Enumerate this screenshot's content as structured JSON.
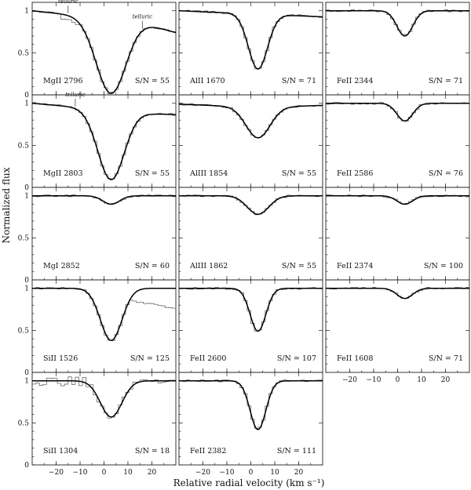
{
  "chart_data": {
    "type": "line",
    "xlabel": "Relative radial velocity (km s⁻¹)",
    "ylabel": "Normalized flux",
    "xlim": [
      -30,
      30
    ],
    "ylim": [
      0,
      1.1
    ],
    "xticks": [
      -20,
      -10,
      0,
      10,
      20
    ],
    "xtick_labels": [
      "−20",
      "−10",
      "0",
      "10",
      "20"
    ],
    "yticks": [
      0,
      0.5,
      1
    ],
    "ytick_labels": [
      "0",
      "0.5",
      "1"
    ],
    "line_center_velocity": 3,
    "panels": [
      {
        "ion": "MgII 2796",
        "snr": "S/N = 55",
        "depth": 0.98,
        "width": 6.2,
        "min_flux": 0.02,
        "telluric": [
          {
            "x": -15,
            "label": "telluric"
          },
          {
            "x": 16,
            "label": "telluric"
          }
        ]
      },
      {
        "ion": "AlII 1670",
        "snr": "S/N = 71",
        "depth": 0.68,
        "width": 4.0,
        "min_flux": 0.32
      },
      {
        "ion": "FeII 2344",
        "snr": "S/N = 71",
        "depth": 0.3,
        "width": 3.3,
        "min_flux": 0.7
      },
      {
        "ion": "MgII 2803",
        "snr": "S/N = 55",
        "depth": 0.9,
        "width": 5.5,
        "min_flux": 0.1,
        "telluric": [
          {
            "x": -12,
            "label": "telluric"
          }
        ]
      },
      {
        "ion": "AlIII 1854",
        "snr": "S/N = 55",
        "depth": 0.38,
        "width": 5.0,
        "min_flux": 0.62
      },
      {
        "ion": "FeII 2586",
        "snr": "S/N = 76",
        "depth": 0.21,
        "width": 3.3,
        "min_flux": 0.79
      },
      {
        "ion": "MgI 2852",
        "snr": "S/N = 60",
        "depth": 0.1,
        "width": 3.5,
        "min_flux": 0.9
      },
      {
        "ion": "AlIII 1862",
        "snr": "S/N = 55",
        "depth": 0.22,
        "width": 4.5,
        "min_flux": 0.78
      },
      {
        "ion": "FeII 2374",
        "snr": "S/N = 100",
        "depth": 0.1,
        "width": 3.3,
        "min_flux": 0.9
      },
      {
        "ion": "SiII 1526",
        "snr": "S/N = 125",
        "depth": 0.62,
        "width": 4.5,
        "min_flux": 0.38
      },
      {
        "ion": "FeII 2600",
        "snr": "S/N = 107",
        "depth": 0.51,
        "width": 3.3,
        "min_flux": 0.49
      },
      {
        "ion": "FeII 1608",
        "snr": "S/N = 71",
        "depth": 0.12,
        "width": 3.3,
        "min_flux": 0.88
      },
      {
        "ion": "SiII 1304",
        "snr": "S/N = 18",
        "depth": 0.43,
        "width": 4.5,
        "min_flux": 0.57
      },
      {
        "ion": "FeII 2382",
        "snr": "S/N = 111",
        "depth": 0.58,
        "width": 3.3,
        "min_flux": 0.42
      }
    ]
  }
}
